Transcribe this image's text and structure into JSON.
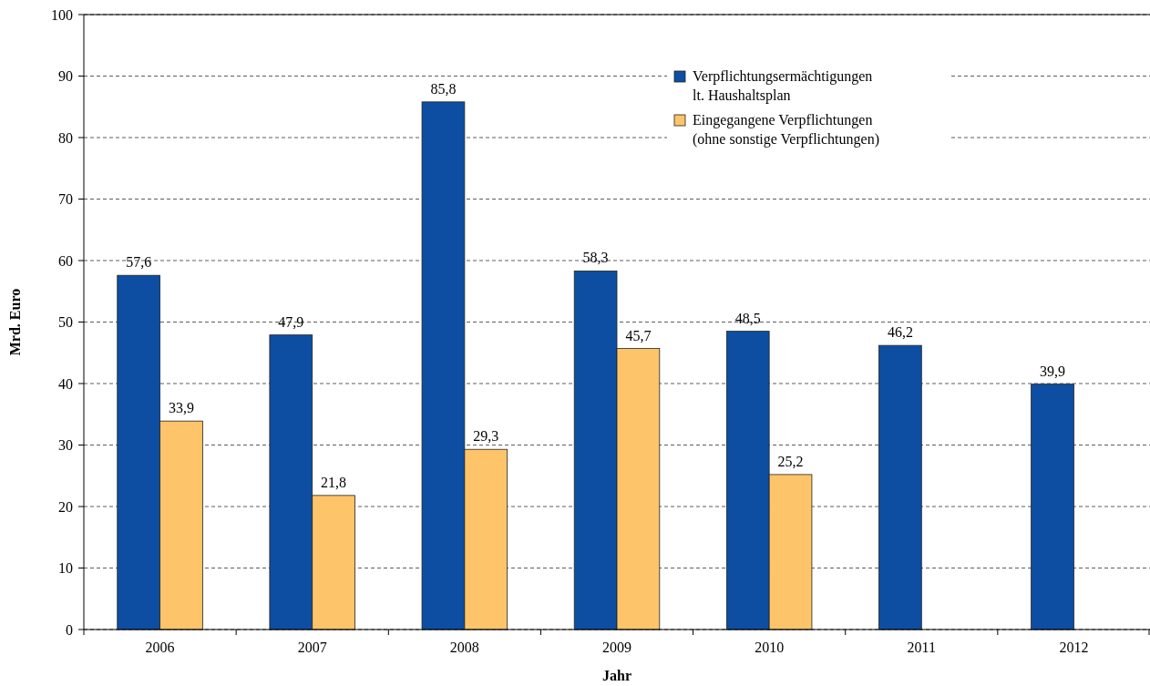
{
  "chart_data": {
    "type": "bar",
    "xlabel": "Jahr",
    "ylabel": "Mrd. Euro",
    "categories": [
      "2006",
      "2007",
      "2008",
      "2009",
      "2010",
      "2011",
      "2012"
    ],
    "series": [
      {
        "name": "Verpflichtungsermächtigungen\nlt. Haushaltsplan",
        "color": "#0d4ea3",
        "values": [
          57.6,
          47.9,
          85.8,
          58.3,
          48.5,
          46.2,
          39.9
        ],
        "value_labels": [
          "57,6",
          "47,9",
          "85,8",
          "58,3",
          "48,5",
          "46,2",
          "39,9"
        ]
      },
      {
        "name": "Eingegangene Verpflichtungen\n(ohne sonstige Verpflichtungen)",
        "color": "#fdc46a",
        "values": [
          33.9,
          21.8,
          29.3,
          45.7,
          25.2,
          null,
          null
        ],
        "value_labels": [
          "33,9",
          "21,8",
          "29,3",
          "45,7",
          "25,2",
          null,
          null
        ]
      }
    ],
    "ylim": [
      0,
      100
    ],
    "yticks": [
      0,
      10,
      20,
      30,
      40,
      50,
      60,
      70,
      80,
      90,
      100
    ],
    "grid": "y",
    "legend": "top right"
  }
}
